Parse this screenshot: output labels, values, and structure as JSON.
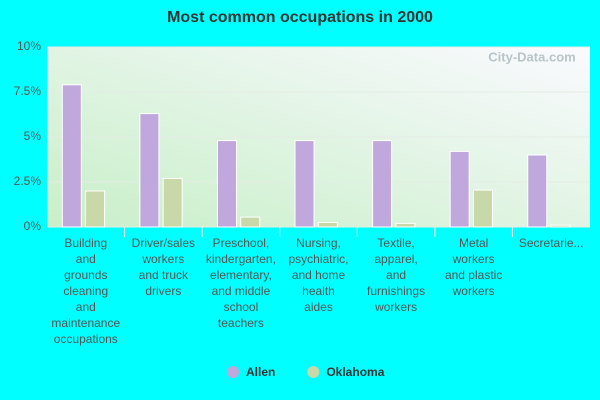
{
  "chart_data": {
    "type": "bar",
    "title": "Most common occupations in 2000",
    "watermark": "City-Data.com",
    "categories": [
      "Building\nand\ngrounds\ncleaning\nand\nmaintenance\noccupations",
      "Driver/sales\nworkers\nand truck\ndrivers",
      "Preschool,\nkindergarten,\nelementary,\nand middle\nschool\nteachers",
      "Nursing,\npsychiatric,\nand home\nhealth\naides",
      "Textile,\napparel,\nand\nfurnishings\nworkers",
      "Metal\nworkers\nand plastic\nworkers",
      "Secretarie..."
    ],
    "series": [
      {
        "name": "Allen",
        "color": "#c0a8dc",
        "values": [
          7.9,
          6.3,
          4.8,
          4.8,
          4.8,
          4.2,
          4.0
        ]
      },
      {
        "name": "Oklahoma",
        "color": "#c8d8a8",
        "values": [
          2.0,
          2.7,
          0.55,
          0.25,
          0.2,
          2.05,
          0.1
        ]
      }
    ],
    "ylim": [
      0,
      10
    ],
    "yticks": [
      {
        "value": 0,
        "label": "0%"
      },
      {
        "value": 2.5,
        "label": "2.5%"
      },
      {
        "value": 5,
        "label": "5%"
      },
      {
        "value": 7.5,
        "label": "7.5%"
      },
      {
        "value": 10,
        "label": "10%"
      }
    ],
    "grid": true,
    "legend": "bottom"
  }
}
